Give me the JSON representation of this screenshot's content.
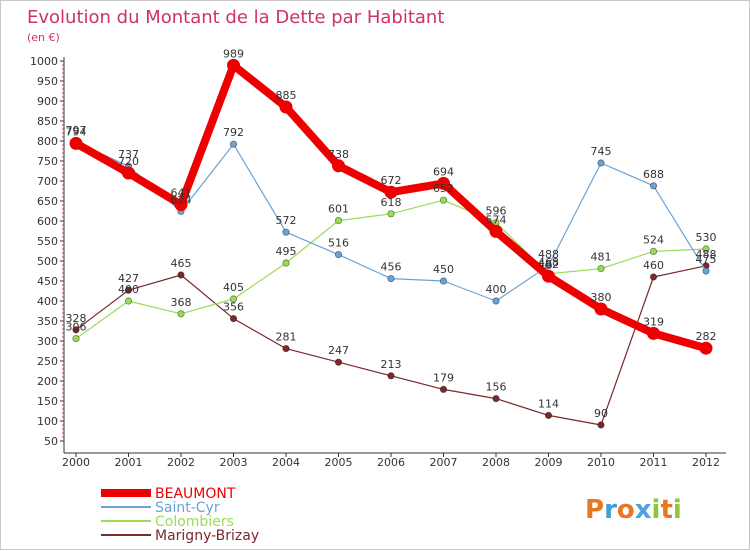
{
  "chart_data": {
    "type": "line",
    "title": "Evolution du Montant de la Dette par Habitant",
    "subtitle": "(en €)",
    "x": [
      "2000",
      "2001",
      "2002",
      "2003",
      "2004",
      "2005",
      "2006",
      "2007",
      "2008",
      "2009",
      "2010",
      "2011",
      "2012"
    ],
    "yticks": [
      50,
      100,
      150,
      200,
      250,
      300,
      350,
      400,
      450,
      500,
      550,
      600,
      650,
      700,
      750,
      800,
      850,
      900,
      950,
      1000
    ],
    "ylim": [
      50,
      1000
    ],
    "grid": false,
    "legend_position": "bottom-left",
    "series": [
      {
        "name": "BEAUMONT",
        "color": "#ee0000",
        "values": [
          794,
          720,
          641,
          989,
          885,
          738,
          672,
          694,
          574,
          462,
          380,
          319,
          282
        ],
        "labels": [
          "794",
          "720",
          "641",
          "989",
          "885",
          "738",
          "672",
          "694",
          "574",
          "462",
          "380",
          "319",
          "282"
        ]
      },
      {
        "name": "Saint-Cyr",
        "color": "#6aa3d5",
        "values": [
          797,
          737,
          624,
          792,
          572,
          516,
          456,
          450,
          400,
          488,
          745,
          688,
          475
        ],
        "labels": [
          "797",
          "737",
          "624",
          "792",
          "572",
          "516",
          "456",
          "450",
          "400",
          "488",
          "745",
          "688",
          "475"
        ]
      },
      {
        "name": "Colombiers",
        "color": "#99dd55",
        "values": [
          306,
          400,
          368,
          405,
          495,
          601,
          618,
          652,
          596,
          468,
          481,
          524,
          530
        ],
        "labels": [
          "306",
          "400",
          "368",
          "405",
          "495",
          "601",
          "618",
          "652",
          "596",
          "468",
          "481",
          "524",
          "530"
        ]
      },
      {
        "name": "Marigny-Brizay",
        "color": "#7a2a2a",
        "values": [
          328,
          427,
          465,
          356,
          281,
          247,
          213,
          179,
          156,
          114,
          90,
          460,
          488
        ],
        "labels": [
          "328",
          "427",
          "465",
          "356",
          "281",
          "247",
          "213",
          "179",
          "156",
          "114",
          "90",
          "460",
          "488"
        ]
      }
    ]
  },
  "brand": {
    "text": "Proxiti"
  },
  "colors": {
    "title": "#cc3366",
    "axis": "#333333",
    "frame": "#c8c8c8"
  }
}
